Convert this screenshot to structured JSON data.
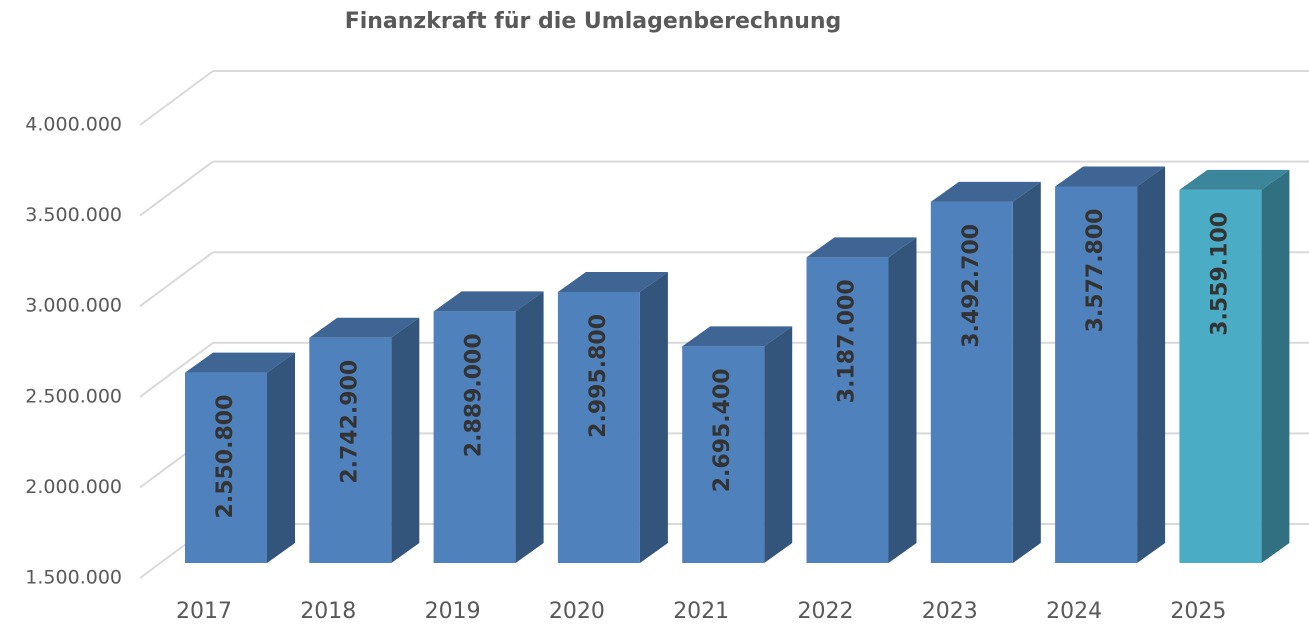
{
  "chart_data": {
    "type": "bar3d",
    "title": "Finanzkraft für die Umlagenberechnung",
    "categories": [
      "2017",
      "2018",
      "2019",
      "2020",
      "2021",
      "2022",
      "2023",
      "2024",
      "2025"
    ],
    "values": [
      2550800,
      2742900,
      2889000,
      2995800,
      2695400,
      3187000,
      3492700,
      3577800,
      3559100
    ],
    "value_labels": [
      "2.550.800",
      "2.742.900",
      "2.889.000",
      "2.995.800",
      "2.695.400",
      "3.187.000",
      "3.492.700",
      "3.577.800",
      "3.559.100"
    ],
    "colors": [
      "#4f81bd",
      "#4f81bd",
      "#4f81bd",
      "#4f81bd",
      "#4f81bd",
      "#4f81bd",
      "#4f81bd",
      "#4f81bd",
      "#4bacc6"
    ],
    "ylim": [
      1500000,
      4000000
    ],
    "yticks": [
      {
        "value": 1500000,
        "label": "1.500.000"
      },
      {
        "value": 2000000,
        "label": "2.000.000"
      },
      {
        "value": 2500000,
        "label": "2.500.000"
      },
      {
        "value": 3000000,
        "label": "3.000.000"
      },
      {
        "value": 3500000,
        "label": "3.500.000"
      },
      {
        "value": 4000000,
        "label": "4.000.000"
      }
    ],
    "grid": true
  }
}
